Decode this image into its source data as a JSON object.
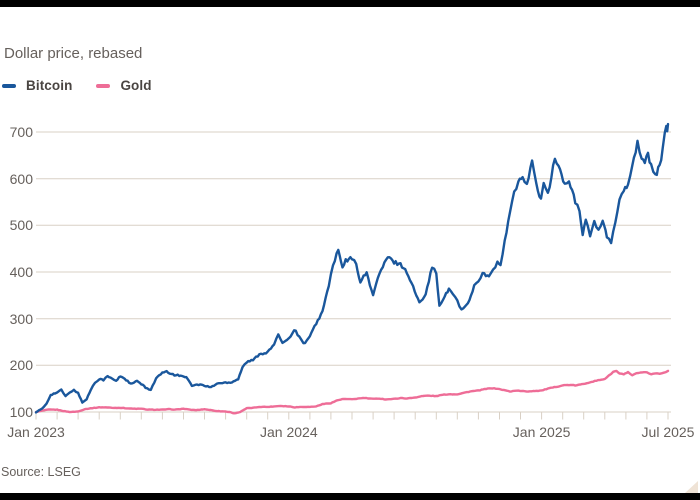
{
  "header": {
    "subtitle": "Dollar price, rebased"
  },
  "legend": {
    "items": [
      {
        "label": "Bitcoin",
        "color": "#1a579c"
      },
      {
        "label": "Gold",
        "color": "#ee6d97"
      }
    ]
  },
  "footer": {
    "source": "Source: LSEG"
  },
  "colors": {
    "background": "#ffffff",
    "text": "#66605c",
    "legend_text": "#4a4542",
    "grid": "#d9d0c5",
    "edge_bar": "#000000",
    "corner_triangle": "#efe3d6",
    "bitcoin_line": "#1a579c",
    "gold_line": "#ee6d97"
  },
  "chart_data": {
    "type": "line",
    "title": "Dollar price, rebased",
    "source": "Source: LSEG",
    "grid": "horizontal",
    "legend_position": "top-left",
    "y_axis": {
      "ticks": [
        100,
        200,
        300,
        400,
        500,
        600,
        700
      ],
      "range": [
        100,
        730
      ]
    },
    "x_axis": {
      "unit": "months since Jan 2023",
      "months_total": 30,
      "tick_interval": "month",
      "labels": [
        {
          "t": 0,
          "label": "Jan 2023"
        },
        {
          "t": 12,
          "label": "Jan 2024"
        },
        {
          "t": 24,
          "label": "Jan 2025"
        },
        {
          "t": 30,
          "label": "Jul 2025"
        }
      ]
    },
    "series": [
      {
        "name": "Bitcoin",
        "color": "#1a579c",
        "points": [
          [
            0,
            100
          ],
          [
            0.3,
            107
          ],
          [
            0.5,
            118
          ],
          [
            0.7,
            137
          ],
          [
            0.9,
            140
          ],
          [
            1.0,
            142
          ],
          [
            1.2,
            147
          ],
          [
            1.4,
            134
          ],
          [
            1.6,
            141
          ],
          [
            1.8,
            148
          ],
          [
            2.0,
            140
          ],
          [
            2.2,
            121
          ],
          [
            2.4,
            127
          ],
          [
            2.6,
            148
          ],
          [
            2.8,
            163
          ],
          [
            3.0,
            171
          ],
          [
            3.2,
            169
          ],
          [
            3.4,
            176
          ],
          [
            3.6,
            172
          ],
          [
            3.8,
            166
          ],
          [
            4.0,
            177
          ],
          [
            4.2,
            172
          ],
          [
            4.5,
            160
          ],
          [
            4.8,
            166
          ],
          [
            5.0,
            160
          ],
          [
            5.2,
            152
          ],
          [
            5.45,
            148
          ],
          [
            5.7,
            172
          ],
          [
            6.0,
            184
          ],
          [
            6.2,
            186
          ],
          [
            6.5,
            180
          ],
          [
            6.8,
            178
          ],
          [
            7.0,
            177
          ],
          [
            7.2,
            172
          ],
          [
            7.4,
            157
          ],
          [
            7.8,
            159
          ],
          [
            8.0,
            156
          ],
          [
            8.3,
            153
          ],
          [
            8.6,
            161
          ],
          [
            9.0,
            163
          ],
          [
            9.3,
            164
          ],
          [
            9.6,
            171
          ],
          [
            9.8,
            196
          ],
          [
            10.0,
            207
          ],
          [
            10.3,
            211
          ],
          [
            10.6,
            224
          ],
          [
            11.0,
            228
          ],
          [
            11.3,
            245
          ],
          [
            11.5,
            264
          ],
          [
            11.7,
            250
          ],
          [
            12.0,
            257
          ],
          [
            12.25,
            277
          ],
          [
            12.5,
            262
          ],
          [
            12.7,
            246
          ],
          [
            13.0,
            261
          ],
          [
            13.3,
            290
          ],
          [
            13.6,
            315
          ],
          [
            13.9,
            372
          ],
          [
            14.1,
            415
          ],
          [
            14.35,
            447
          ],
          [
            14.55,
            408
          ],
          [
            14.7,
            424
          ],
          [
            15.0,
            430
          ],
          [
            15.2,
            415
          ],
          [
            15.4,
            380
          ],
          [
            15.7,
            398
          ],
          [
            16.0,
            350
          ],
          [
            16.3,
            397
          ],
          [
            16.7,
            432
          ],
          [
            17.0,
            421
          ],
          [
            17.3,
            417
          ],
          [
            17.6,
            400
          ],
          [
            17.9,
            368
          ],
          [
            18.2,
            333
          ],
          [
            18.5,
            355
          ],
          [
            18.8,
            410
          ],
          [
            19.0,
            400
          ],
          [
            19.15,
            325
          ],
          [
            19.4,
            348
          ],
          [
            19.6,
            362
          ],
          [
            19.8,
            353
          ],
          [
            20.0,
            340
          ],
          [
            20.2,
            318
          ],
          [
            20.5,
            332
          ],
          [
            20.8,
            370
          ],
          [
            21.0,
            382
          ],
          [
            21.2,
            398
          ],
          [
            21.5,
            388
          ],
          [
            21.7,
            406
          ],
          [
            21.9,
            420
          ],
          [
            22.05,
            412
          ],
          [
            22.25,
            465
          ],
          [
            22.5,
            528
          ],
          [
            22.7,
            570
          ],
          [
            22.9,
            590
          ],
          [
            23.1,
            605
          ],
          [
            23.3,
            588
          ],
          [
            23.55,
            642
          ],
          [
            23.75,
            585
          ],
          [
            23.97,
            556
          ],
          [
            24.1,
            590
          ],
          [
            24.3,
            565
          ],
          [
            24.63,
            645
          ],
          [
            24.8,
            625
          ],
          [
            24.95,
            610
          ],
          [
            25.1,
            585
          ],
          [
            25.3,
            595
          ],
          [
            25.6,
            550
          ],
          [
            25.8,
            530
          ],
          [
            25.95,
            478
          ],
          [
            26.1,
            516
          ],
          [
            26.3,
            480
          ],
          [
            26.5,
            505
          ],
          [
            26.7,
            490
          ],
          [
            26.9,
            510
          ],
          [
            27.1,
            475
          ],
          [
            27.3,
            461
          ],
          [
            27.5,
            505
          ],
          [
            27.7,
            560
          ],
          [
            27.9,
            575
          ],
          [
            28.1,
            590
          ],
          [
            28.3,
            625
          ],
          [
            28.55,
            678
          ],
          [
            28.75,
            645
          ],
          [
            28.9,
            635
          ],
          [
            29.05,
            650
          ],
          [
            29.2,
            630
          ],
          [
            29.4,
            606
          ],
          [
            29.6,
            628
          ],
          [
            29.75,
            660
          ],
          [
            29.85,
            695
          ],
          [
            29.92,
            710
          ],
          [
            29.96,
            705
          ],
          [
            30,
            717
          ]
        ]
      },
      {
        "name": "Gold",
        "color": "#ee6d97",
        "points": [
          [
            0,
            100
          ],
          [
            0.3,
            103
          ],
          [
            0.6,
            105
          ],
          [
            1.0,
            105
          ],
          [
            1.3,
            102
          ],
          [
            1.6,
            100
          ],
          [
            2.0,
            101
          ],
          [
            2.3,
            106
          ],
          [
            2.6,
            108
          ],
          [
            3.0,
            110
          ],
          [
            3.3,
            110
          ],
          [
            3.6,
            109
          ],
          [
            4.0,
            109
          ],
          [
            4.3,
            108
          ],
          [
            4.6,
            107
          ],
          [
            5.0,
            107
          ],
          [
            5.3,
            105
          ],
          [
            5.6,
            105
          ],
          [
            6.0,
            105
          ],
          [
            6.3,
            106
          ],
          [
            6.6,
            105
          ],
          [
            7.0,
            107
          ],
          [
            7.3,
            105
          ],
          [
            7.6,
            104
          ],
          [
            8.0,
            106
          ],
          [
            8.3,
            104
          ],
          [
            8.6,
            102
          ],
          [
            9.0,
            101
          ],
          [
            9.2,
            100
          ],
          [
            9.4,
            97
          ],
          [
            9.7,
            100
          ],
          [
            10.0,
            108
          ],
          [
            10.3,
            109
          ],
          [
            10.6,
            111
          ],
          [
            11.0,
            111
          ],
          [
            11.3,
            112
          ],
          [
            11.6,
            113
          ],
          [
            12.0,
            112
          ],
          [
            12.3,
            110
          ],
          [
            12.6,
            111
          ],
          [
            13.0,
            111
          ],
          [
            13.3,
            112
          ],
          [
            13.6,
            117
          ],
          [
            14.0,
            119
          ],
          [
            14.3,
            125
          ],
          [
            14.6,
            128
          ],
          [
            15.0,
            127
          ],
          [
            15.3,
            129
          ],
          [
            15.6,
            130
          ],
          [
            16.0,
            128
          ],
          [
            16.3,
            129
          ],
          [
            16.6,
            127
          ],
          [
            17.0,
            128
          ],
          [
            17.3,
            130
          ],
          [
            17.6,
            129
          ],
          [
            18.0,
            131
          ],
          [
            18.3,
            134
          ],
          [
            18.6,
            135
          ],
          [
            19.0,
            134
          ],
          [
            19.3,
            137
          ],
          [
            19.6,
            138
          ],
          [
            20.0,
            138
          ],
          [
            20.3,
            141
          ],
          [
            20.6,
            144
          ],
          [
            21.0,
            146
          ],
          [
            21.3,
            149
          ],
          [
            21.6,
            151
          ],
          [
            21.9,
            150
          ],
          [
            22.2,
            147
          ],
          [
            22.5,
            144
          ],
          [
            22.8,
            146
          ],
          [
            23.0,
            145
          ],
          [
            23.3,
            144
          ],
          [
            23.6,
            145
          ],
          [
            24.0,
            146
          ],
          [
            24.3,
            150
          ],
          [
            24.6,
            153
          ],
          [
            25.0,
            157
          ],
          [
            25.3,
            158
          ],
          [
            25.6,
            157
          ],
          [
            26.0,
            160
          ],
          [
            26.3,
            164
          ],
          [
            26.6,
            167
          ],
          [
            27.0,
            171
          ],
          [
            27.2,
            178
          ],
          [
            27.4,
            186
          ],
          [
            27.55,
            188
          ],
          [
            27.7,
            182
          ],
          [
            27.9,
            181
          ],
          [
            28.1,
            185
          ],
          [
            28.3,
            178
          ],
          [
            28.5,
            183
          ],
          [
            28.7,
            184
          ],
          [
            29.0,
            185
          ],
          [
            29.2,
            181
          ],
          [
            29.4,
            183
          ],
          [
            29.6,
            182
          ],
          [
            29.8,
            184
          ],
          [
            30,
            188
          ]
        ]
      }
    ]
  }
}
